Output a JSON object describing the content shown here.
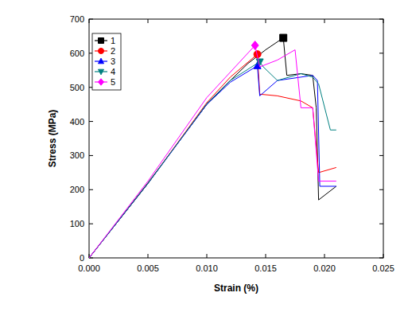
{
  "chart_data": {
    "type": "line",
    "x_label": "Strain (%)",
    "y_label": "Stress (MPa)",
    "xlim": [
      0,
      0.025
    ],
    "xticks": [
      {
        "value": 0,
        "label": "0.000"
      },
      {
        "value": 0.005,
        "label": "0.005"
      },
      {
        "value": 0.01,
        "label": "0.010"
      },
      {
        "value": 0.015,
        "label": "0.015"
      },
      {
        "value": 0.02,
        "label": "0.020"
      },
      {
        "value": 0.025,
        "label": "0.025"
      }
    ],
    "ylim": [
      0,
      700
    ],
    "yticks": [
      0,
      100,
      200,
      300,
      400,
      500,
      600,
      700
    ],
    "grid": false,
    "legend": "top-left",
    "series": [
      {
        "name": "1",
        "color": "#000000",
        "marker": "square",
        "x": [
          0,
          0.005,
          0.01,
          0.012,
          0.0135,
          0.015,
          0.0165,
          0.0168,
          0.018,
          0.019,
          0.0193,
          0.0195,
          0.021
        ],
        "values": [
          0,
          220,
          450,
          520,
          570,
          610,
          645,
          535,
          540,
          535,
          440,
          170,
          210
        ]
      },
      {
        "name": "2",
        "color": "#ff0000",
        "marker": "circle",
        "x": [
          0,
          0.005,
          0.01,
          0.012,
          0.0143,
          0.0145,
          0.016,
          0.018,
          0.019,
          0.0195,
          0.021
        ],
        "values": [
          0,
          218,
          455,
          530,
          597,
          480,
          475,
          460,
          440,
          250,
          265
        ]
      },
      {
        "name": "3",
        "color": "#0000ff",
        "marker": "triangle",
        "x": [
          0,
          0.005,
          0.01,
          0.012,
          0.0143,
          0.0145,
          0.016,
          0.019,
          0.0194,
          0.0196,
          0.021
        ],
        "values": [
          0,
          218,
          450,
          515,
          563,
          475,
          520,
          535,
          520,
          210,
          210
        ]
      },
      {
        "name": "4",
        "color": "#008080",
        "marker": "triangle-down",
        "x": [
          0,
          0.005,
          0.01,
          0.012,
          0.0145,
          0.0148,
          0.016,
          0.018,
          0.019,
          0.0195,
          0.0205,
          0.021
        ],
        "values": [
          0,
          218,
          452,
          520,
          575,
          560,
          520,
          540,
          530,
          510,
          375,
          375
        ]
      },
      {
        "name": "5",
        "color": "#ff00ff",
        "marker": "diamond",
        "x": [
          0,
          0.005,
          0.01,
          0.0141,
          0.0145,
          0.016,
          0.0175,
          0.018,
          0.019,
          0.0195,
          0.021
        ],
        "values": [
          0,
          225,
          470,
          623,
          560,
          580,
          610,
          440,
          440,
          225,
          225
        ]
      }
    ]
  }
}
